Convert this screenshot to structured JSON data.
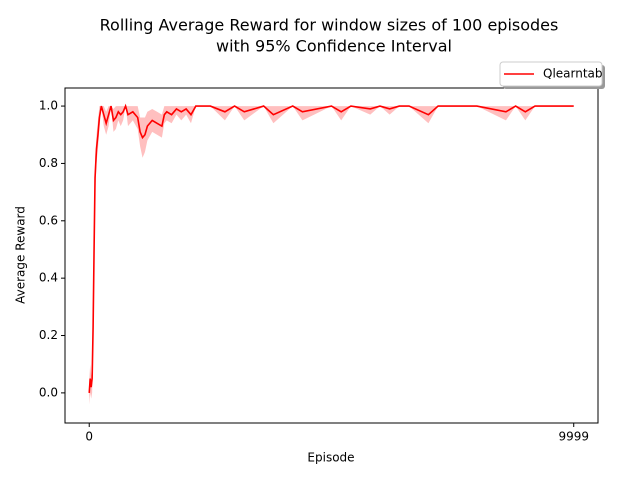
{
  "chart_data": {
    "type": "line",
    "title": [
      "Rolling Average Reward for window sizes of 100 episodes",
      "with 95% Confidence Interval"
    ],
    "x_label": "Episode",
    "y_label": "Average Reward",
    "xlim": [
      -500,
      10500
    ],
    "xticks": [
      0,
      9999
    ],
    "ylim": [
      -0.105,
      1.063
    ],
    "yticks": [
      {
        "value": 0,
        "label": "0.0"
      },
      {
        "value": 0.2,
        "label": "0.2"
      },
      {
        "value": 0.4,
        "label": "0.4"
      },
      {
        "value": 0.6,
        "label": "0.6"
      },
      {
        "value": 0.8,
        "label": "0.8"
      },
      {
        "value": 1,
        "label": "1.0"
      }
    ],
    "legend": "upper right",
    "x": [
      0,
      20,
      40,
      60,
      80,
      100,
      120,
      150,
      180,
      210,
      250,
      300,
      350,
      400,
      450,
      500,
      550,
      600,
      650,
      700,
      750,
      800,
      900,
      1000,
      1050,
      1100,
      1150,
      1200,
      1300,
      1400,
      1500,
      1550,
      1600,
      1700,
      1800,
      1900,
      2000,
      2100,
      2200,
      2500,
      2800,
      3000,
      3200,
      3600,
      3800,
      4200,
      4400,
      5000,
      5200,
      5400,
      5800,
      6000,
      6200,
      6400,
      6600,
      7000,
      7200,
      7400,
      8000,
      8600,
      8800,
      9000,
      9200,
      9999
    ],
    "series": [
      {
        "name": "Qlearntab",
        "color": "#ff0000",
        "band_color": "#ff0000",
        "values": [
          0.0,
          0.05,
          0.02,
          0.05,
          0.23,
          0.5,
          0.75,
          0.85,
          0.9,
          0.96,
          1.0,
          0.97,
          0.94,
          0.97,
          1.0,
          0.95,
          0.96,
          0.98,
          0.97,
          0.98,
          1.0,
          0.97,
          0.98,
          0.96,
          0.91,
          0.89,
          0.9,
          0.93,
          0.95,
          0.94,
          0.93,
          0.97,
          0.98,
          0.97,
          0.99,
          0.98,
          0.99,
          0.97,
          1.0,
          1.0,
          0.98,
          1.0,
          0.98,
          1.0,
          0.97,
          1.0,
          0.98,
          1.0,
          0.98,
          1.0,
          0.99,
          1.0,
          0.99,
          1.0,
          1.0,
          0.97,
          1.0,
          1.0,
          1.0,
          0.98,
          1.0,
          0.98,
          1.0,
          1.0
        ],
        "ci_lower": [
          -0.04,
          0.0,
          -0.02,
          0.0,
          0.15,
          0.42,
          0.68,
          0.8,
          0.85,
          0.92,
          1.0,
          0.93,
          0.9,
          0.93,
          1.0,
          0.91,
          0.92,
          0.95,
          0.93,
          0.95,
          1.0,
          0.93,
          0.95,
          0.92,
          0.86,
          0.82,
          0.84,
          0.88,
          0.91,
          0.9,
          0.89,
          0.94,
          0.95,
          0.94,
          0.97,
          0.95,
          0.97,
          0.94,
          1.0,
          1.0,
          0.95,
          1.0,
          0.95,
          1.0,
          0.94,
          1.0,
          0.95,
          1.0,
          0.95,
          1.0,
          0.97,
          1.0,
          0.97,
          1.0,
          1.0,
          0.94,
          1.0,
          1.0,
          1.0,
          0.95,
          1.0,
          0.95,
          1.0,
          1.0
        ],
        "ci_upper": [
          0.04,
          0.1,
          0.06,
          0.1,
          0.31,
          0.58,
          0.82,
          0.9,
          0.95,
          1.0,
          1.0,
          1.0,
          0.98,
          1.0,
          1.0,
          0.99,
          1.0,
          1.0,
          1.0,
          1.0,
          1.0,
          1.0,
          1.0,
          1.0,
          0.96,
          0.96,
          0.96,
          0.98,
          0.99,
          0.98,
          0.97,
          1.0,
          1.0,
          1.0,
          1.0,
          1.0,
          1.0,
          1.0,
          1.0,
          1.0,
          1.0,
          1.0,
          1.0,
          1.0,
          1.0,
          1.0,
          1.0,
          1.0,
          1.0,
          1.0,
          1.0,
          1.0,
          1.0,
          1.0,
          1.0,
          1.0,
          1.0,
          1.0,
          1.0,
          1.0,
          1.0,
          1.0,
          1.0,
          1.0
        ]
      }
    ]
  }
}
